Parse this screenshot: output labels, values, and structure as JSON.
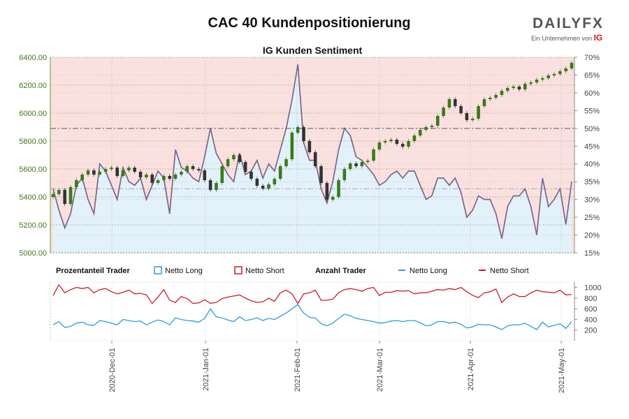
{
  "title": "CAC 40 Kundenpositionierung",
  "logo": {
    "word": "DAILYFX",
    "sub": "Ein Unternehmen von",
    "brand": "IG"
  },
  "colors": {
    "long": "#2a9fd6",
    "short": "#cc1b2b",
    "long_fill": "#e3f1fa",
    "short_fill": "#fbe0e0",
    "candle_up": "#3a7a1a",
    "candle_down": "#333333"
  },
  "chart_data": {
    "type": "line",
    "title": "IG Kunden Sentiment",
    "x_ticks": [
      "2020-Dec-01",
      "2021-Jan-01",
      "2021-Feb-01",
      "2021-Mar-01",
      "2021-Apr-01",
      "2021-May-01"
    ],
    "price": {
      "name": "CAC 40",
      "ylim": [
        5000,
        6400
      ],
      "y_ticks": [
        "6400.00",
        "6200.00",
        "6000.00",
        "5800.00",
        "5600.00",
        "5400.00",
        "5200.00",
        "5000.00"
      ],
      "close": [
        5420,
        5450,
        5350,
        5470,
        5520,
        5560,
        5590,
        5560,
        5580,
        5600,
        5610,
        5550,
        5590,
        5610,
        5580,
        5540,
        5560,
        5500,
        5520,
        5550,
        5530,
        5560,
        5580,
        5620,
        5600,
        5590,
        5520,
        5450,
        5500,
        5620,
        5670,
        5700,
        5650,
        5580,
        5530,
        5480,
        5460,
        5490,
        5530,
        5620,
        5670,
        5860,
        5900,
        5800,
        5720,
        5620,
        5500,
        5380,
        5400,
        5520,
        5600,
        5640,
        5620,
        5650,
        5660,
        5740,
        5790,
        5800,
        5810,
        5780,
        5760,
        5800,
        5840,
        5880,
        5900,
        5910,
        5980,
        6040,
        6100,
        6050,
        6000,
        5950,
        5960,
        6050,
        6100,
        6110,
        6130,
        6160,
        6180,
        6190,
        6170,
        6210,
        6220,
        6240,
        6250,
        6270,
        6280,
        6300,
        6320,
        6360
      ]
    },
    "sentiment_pct": {
      "ylim": [
        15,
        70
      ],
      "y_ticks": [
        "70%",
        "65%",
        "60%",
        "55%",
        "50%",
        "45%",
        "40%",
        "35%",
        "30%",
        "25%",
        "20%",
        "15%"
      ],
      "long_pct": [
        33,
        27,
        22,
        26,
        34,
        36,
        30,
        26,
        40,
        38,
        34,
        30,
        39,
        35,
        34,
        36,
        30,
        34,
        38,
        36,
        26,
        44,
        39,
        38,
        36,
        35,
        42,
        50,
        43,
        40,
        37,
        35,
        43,
        37,
        38,
        41,
        36,
        40,
        38,
        44,
        50,
        58,
        68,
        46,
        41,
        41,
        33,
        29,
        35,
        44,
        50,
        48,
        42,
        41,
        39,
        37,
        34,
        35,
        37,
        38,
        36,
        38,
        38,
        34,
        30,
        31,
        36,
        36,
        34,
        36,
        32,
        25,
        27,
        31,
        30,
        30,
        26,
        19,
        28,
        31,
        31,
        33,
        28,
        20,
        36,
        28,
        30,
        33,
        23,
        35
      ]
    },
    "trader_counts": {
      "ylim": [
        0,
        1100
      ],
      "y_ticks": [
        "1000",
        "800",
        "600",
        "400",
        "200"
      ],
      "net_long": [
        300,
        360,
        250,
        270,
        330,
        350,
        300,
        290,
        380,
        360,
        330,
        300,
        400,
        380,
        360,
        370,
        300,
        350,
        390,
        360,
        300,
        430,
        400,
        380,
        370,
        350,
        420,
        600,
        450,
        430,
        390,
        360,
        450,
        380,
        400,
        430,
        380,
        420,
        400,
        460,
        520,
        600,
        680,
        520,
        440,
        430,
        320,
        280,
        330,
        420,
        500,
        470,
        420,
        400,
        380,
        360,
        330,
        340,
        370,
        380,
        360,
        380,
        380,
        340,
        280,
        300,
        360,
        360,
        330,
        350,
        310,
        240,
        260,
        310,
        300,
        300,
        260,
        210,
        280,
        300,
        300,
        330,
        270,
        210,
        350,
        260,
        290,
        320,
        230,
        360
      ],
      "net_short": [
        850,
        1050,
        900,
        960,
        1000,
        980,
        1000,
        900,
        960,
        980,
        920,
        880,
        910,
        950,
        880,
        890,
        860,
        700,
        820,
        960,
        760,
        720,
        830,
        790,
        700,
        710,
        770,
        700,
        720,
        790,
        820,
        840,
        860,
        800,
        750,
        720,
        730,
        800,
        740,
        900,
        950,
        880,
        700,
        880,
        900,
        950,
        760,
        760,
        780,
        900,
        960,
        980,
        960,
        930,
        980,
        1000,
        850,
        910,
        910,
        940,
        930,
        940,
        880,
        900,
        900,
        930,
        960,
        950,
        980,
        960,
        1000,
        920,
        850,
        810,
        900,
        920,
        970,
        720,
        820,
        880,
        830,
        830,
        900,
        950,
        920,
        910,
        900,
        950,
        860,
        870
      ]
    },
    "legend": {
      "pct_title": "Prozentanteil Trader",
      "pct_long": "Netto Long",
      "pct_short": "Netto Short",
      "count_title": "Anzahl Trader",
      "count_long": "Netto Long",
      "count_short": "Netto Short"
    }
  }
}
